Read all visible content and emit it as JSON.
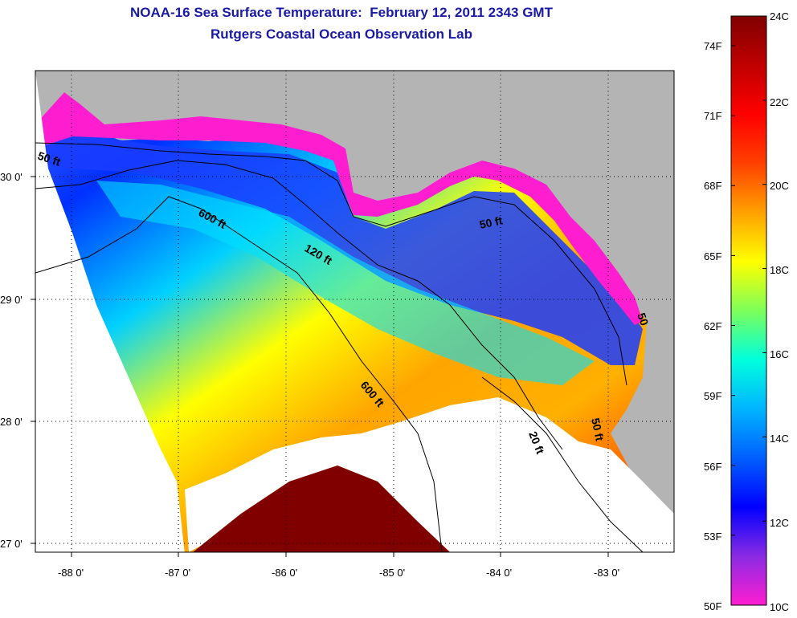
{
  "header": {
    "title_line1": "NOAA-16 Sea Surface Temperature:  February 12, 2011 2343 GMT",
    "title_line2": "Rutgers Coastal Ocean Observation Lab",
    "title_color": "#1a1aa6"
  },
  "map": {
    "land_color": "#b4b4b4",
    "no_data_color": "#ffffff",
    "lon_ticks": [
      "-88 0'",
      "-87 0'",
      "-86 0'",
      "-85 0'",
      "-84 0'",
      "-83 0'"
    ],
    "lat_ticks": [
      "30 0'",
      "29 0'",
      "28 0'",
      "27 0'"
    ],
    "contours": [
      {
        "label": "50 ft",
        "depth_ft": 50
      },
      {
        "label": "600 ft",
        "depth_ft": 600
      },
      {
        "label": "120 ft",
        "depth_ft": 120
      },
      {
        "label": "50 ft",
        "depth_ft": 50
      },
      {
        "label": "600 ft",
        "depth_ft": 600
      },
      {
        "label": "20 ft",
        "depth_ft": 20
      },
      {
        "label": "50 ft",
        "depth_ft": 50
      },
      {
        "label": "50",
        "depth_ft": 50
      }
    ]
  },
  "colorbar": {
    "celsius_labels": [
      "24C",
      "22C",
      "20C",
      "18C",
      "16C",
      "14C",
      "12C",
      "10C"
    ],
    "fahrenheit_labels": [
      "74F",
      "71F",
      "68F",
      "65F",
      "62F",
      "59F",
      "56F",
      "53F",
      "50F"
    ],
    "range_c": [
      10,
      24
    ],
    "stops": [
      "#ff1dd0",
      "#8a2be2",
      "#0000ff",
      "#0060ff",
      "#00b4ff",
      "#00ffdc",
      "#7dff5a",
      "#ffff00",
      "#ffa000",
      "#ff4000",
      "#ff0000",
      "#c00000",
      "#800000"
    ]
  }
}
